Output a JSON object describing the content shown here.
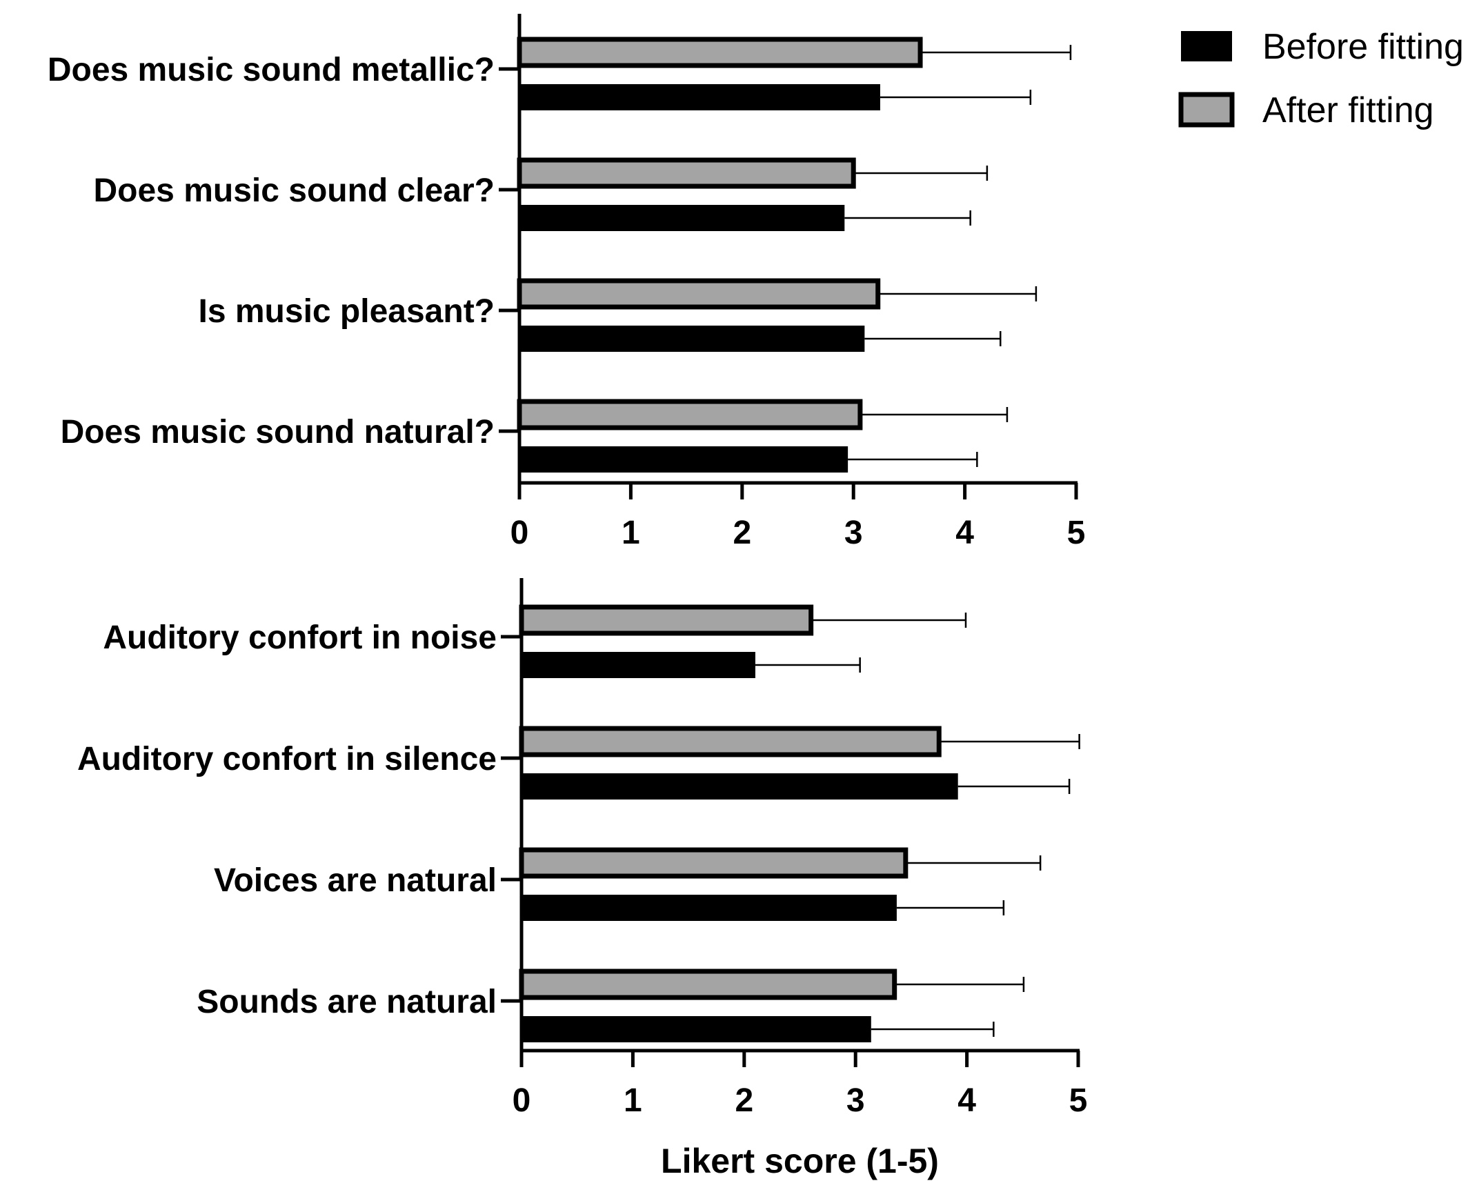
{
  "chart_data": [
    {
      "type": "bar",
      "orientation": "horizontal",
      "categories": [
        "Does music sound metallic?",
        "Does music sound clear?",
        "Is music pleasant?",
        "Does music sound natural?"
      ],
      "series": [
        {
          "name": "After fitting",
          "color": "#a4a4a4",
          "values": [
            3.6,
            3.0,
            3.22,
            3.06
          ],
          "error": [
            1.35,
            1.2,
            1.42,
            1.32
          ]
        },
        {
          "name": "Before fitting",
          "color": "#000000",
          "values": [
            3.24,
            2.92,
            3.1,
            2.95
          ],
          "error": [
            1.35,
            1.13,
            1.22,
            1.16
          ]
        }
      ],
      "xlim": [
        0,
        5
      ],
      "xticks": [
        "0",
        "1",
        "2",
        "3",
        "4",
        "5"
      ],
      "xlabel": "",
      "grid": false
    },
    {
      "type": "bar",
      "orientation": "horizontal",
      "categories": [
        "Auditory confort in noise",
        "Auditory confort in silence",
        "Voices are natural",
        "Sounds are natural"
      ],
      "series": [
        {
          "name": "After fitting",
          "color": "#a4a4a4",
          "values": [
            2.6,
            3.75,
            3.45,
            3.35
          ],
          "error": [
            1.39,
            1.26,
            1.21,
            1.16
          ]
        },
        {
          "name": "Before fitting",
          "color": "#000000",
          "values": [
            2.1,
            3.92,
            3.37,
            3.14
          ],
          "error": [
            0.94,
            1.0,
            0.96,
            1.1
          ]
        }
      ],
      "xlim": [
        0,
        5
      ],
      "xticks": [
        "0",
        "1",
        "2",
        "3",
        "4",
        "5"
      ],
      "xlabel": "Likert score (1-5)",
      "grid": false
    }
  ],
  "legend": {
    "placement": "top-right",
    "entries": [
      {
        "label": "Before fitting",
        "color": "#000000"
      },
      {
        "label": "After fitting",
        "color": "#a4a4a4"
      }
    ]
  }
}
